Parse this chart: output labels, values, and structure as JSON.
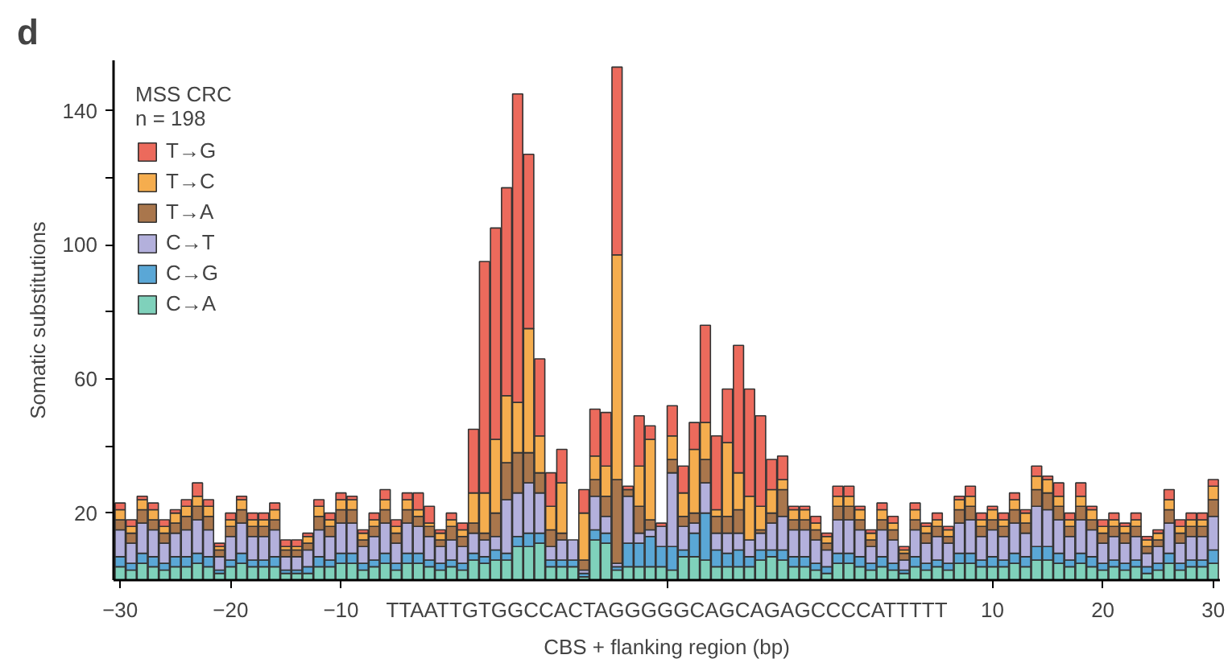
{
  "chart_data": {
    "type": "bar",
    "stacked": true,
    "xlabel": "CBS + flanking region (bp)",
    "ylabel": "Somatic substitutions",
    "legend_title": "MSS CRC\nn = 198",
    "annotations": [
      "d",
      "TTAATTGTGGCCACTAGGGGGCAGCAGAGCCCCATTTTT"
    ],
    "categories": [
      "−30",
      null,
      null,
      null,
      null,
      null,
      null,
      null,
      null,
      null,
      "−20",
      null,
      null,
      null,
      null,
      null,
      null,
      null,
      null,
      null,
      "−10",
      null,
      null,
      null,
      null,
      null,
      null,
      null,
      null,
      null,
      null,
      null,
      null,
      null,
      null,
      null,
      null,
      null,
      null,
      null,
      null,
      null,
      null,
      null,
      null,
      null,
      null,
      null,
      null,
      null,
      null,
      null,
      null,
      null,
      null,
      null,
      null,
      null,
      null,
      null,
      null,
      null,
      null,
      null,
      null,
      null,
      null,
      null,
      null,
      null,
      null,
      null,
      null,
      null,
      null,
      null,
      null,
      null,
      null,
      "10",
      null,
      null,
      null,
      null,
      null,
      null,
      null,
      null,
      null,
      "20",
      null,
      null,
      null,
      null,
      null,
      null,
      null,
      null,
      null,
      "30"
    ],
    "ylim": [
      0,
      155
    ],
    "yticks": [
      20,
      {
        "value": 40,
        "label": null
      },
      60,
      {
        "value": 80,
        "label": null
      },
      100,
      {
        "value": 120,
        "label": null
      },
      140
    ],
    "grid": false,
    "legend": "top left",
    "series": [
      {
        "name": "C→A",
        "color": "#7fd1bb",
        "values": [
          4,
          3,
          5,
          4,
          3,
          4,
          4,
          5,
          4,
          2,
          4,
          5,
          4,
          4,
          4,
          2,
          2,
          2,
          4,
          4,
          5,
          5,
          3,
          4,
          5,
          3,
          5,
          5,
          4,
          3,
          4,
          3,
          6,
          5,
          6,
          6,
          10,
          10,
          11,
          4,
          4,
          4,
          1,
          12,
          11,
          3,
          4,
          4,
          4,
          4,
          3,
          7,
          7,
          6,
          4,
          4,
          4,
          4,
          6,
          7,
          6,
          4,
          4,
          3,
          2,
          5,
          5,
          4,
          3,
          4,
          3,
          2,
          4,
          3,
          4,
          3,
          5,
          5,
          4,
          4,
          4,
          5,
          4,
          6,
          6,
          5,
          4,
          5,
          4,
          3,
          4,
          3,
          4,
          2,
          3,
          5,
          3,
          4,
          4,
          5
        ]
      },
      {
        "name": "C→G",
        "color": "#5aa7d6",
        "values": [
          3,
          2,
          3,
          3,
          2,
          3,
          3,
          3,
          3,
          1,
          2,
          3,
          2,
          2,
          3,
          1,
          1,
          2,
          3,
          2,
          3,
          3,
          2,
          2,
          3,
          2,
          3,
          3,
          2,
          2,
          2,
          2,
          2,
          2,
          3,
          2,
          3,
          4,
          3,
          2,
          2,
          2,
          1,
          3,
          3,
          1,
          7,
          7,
          9,
          6,
          7,
          2,
          7,
          14,
          5,
          4,
          5,
          3,
          3,
          2,
          3,
          3,
          3,
          2,
          2,
          3,
          3,
          3,
          2,
          3,
          2,
          1,
          3,
          2,
          2,
          2,
          3,
          3,
          2,
          3,
          2,
          3,
          3,
          4,
          4,
          3,
          2,
          3,
          3,
          2,
          2,
          2,
          2,
          2,
          2,
          3,
          2,
          2,
          2,
          4
        ]
      },
      {
        "name": "C→T",
        "color": "#b3b0dc",
        "values": [
          8,
          6,
          9,
          8,
          6,
          7,
          8,
          10,
          8,
          4,
          7,
          9,
          7,
          7,
          8,
          4,
          4,
          5,
          8,
          7,
          9,
          9,
          5,
          7,
          9,
          6,
          9,
          8,
          7,
          5,
          6,
          5,
          6,
          5,
          4,
          16,
          13,
          15,
          12,
          4,
          6,
          6,
          1,
          10,
          5,
          1,
          14,
          3,
          2,
          6,
          22,
          7,
          3,
          9,
          5,
          6,
          5,
          5,
          5,
          8,
          10,
          8,
          8,
          7,
          5,
          10,
          10,
          8,
          5,
          8,
          7,
          3,
          8,
          6,
          7,
          6,
          9,
          10,
          7,
          8,
          7,
          9,
          7,
          12,
          11,
          10,
          7,
          10,
          8,
          6,
          7,
          6,
          7,
          4,
          5,
          9,
          6,
          7,
          7,
          10
        ]
      },
      {
        "name": "T→A",
        "color": "#a9764c",
        "values": [
          3,
          3,
          4,
          3,
          3,
          3,
          4,
          4,
          4,
          2,
          3,
          4,
          3,
          3,
          3,
          2,
          2,
          2,
          4,
          3,
          4,
          4,
          2,
          3,
          4,
          3,
          4,
          3,
          3,
          2,
          4,
          3,
          3,
          2,
          7,
          11,
          12,
          9,
          6,
          5,
          2,
          0,
          3,
          5,
          6,
          25,
          2,
          8,
          3,
          0,
          4,
          3,
          3,
          7,
          5,
          5,
          7,
          0,
          1,
          3,
          8,
          3,
          3,
          3,
          2,
          4,
          4,
          3,
          2,
          3,
          3,
          2,
          3,
          3,
          3,
          2,
          4,
          4,
          3,
          3,
          3,
          4,
          3,
          5,
          5,
          4,
          3,
          4,
          3,
          3,
          3,
          3,
          3,
          2,
          2,
          4,
          3,
          3,
          3,
          5
        ]
      },
      {
        "name": "T→C",
        "color": "#f5ad4e",
        "values": [
          3,
          2,
          3,
          3,
          2,
          3,
          3,
          3,
          3,
          1,
          2,
          3,
          2,
          2,
          3,
          1,
          1,
          2,
          3,
          2,
          3,
          3,
          2,
          2,
          3,
          2,
          3,
          2,
          1,
          2,
          2,
          2,
          9,
          12,
          22,
          20,
          15,
          37,
          11,
          7,
          15,
          0,
          14,
          7,
          9,
          67,
          0,
          12,
          24,
          0,
          7,
          7,
          19,
          11,
          2,
          22,
          11,
          13,
          7,
          7,
          3,
          3,
          3,
          2,
          2,
          3,
          3,
          3,
          2,
          3,
          2,
          1,
          3,
          2,
          2,
          2,
          3,
          3,
          2,
          3,
          2,
          3,
          3,
          4,
          4,
          3,
          2,
          3,
          3,
          2,
          2,
          2,
          2,
          2,
          2,
          3,
          2,
          2,
          2,
          4
        ]
      },
      {
        "name": "T→G",
        "color": "#ec6a5c",
        "values": [
          2,
          2,
          1,
          2,
          2,
          1,
          2,
          4,
          2,
          1,
          2,
          1,
          2,
          2,
          2,
          2,
          2,
          1,
          2,
          2,
          2,
          1,
          1,
          2,
          3,
          2,
          2,
          5,
          5,
          1,
          2,
          2,
          19,
          69,
          63,
          62,
          92,
          52,
          23,
          10,
          10,
          0,
          7,
          14,
          16,
          56,
          1,
          15,
          4,
          1,
          9,
          8,
          8,
          29,
          22,
          16,
          38,
          32,
          27,
          9,
          7,
          1,
          1,
          2,
          1,
          3,
          3,
          1,
          1,
          2,
          2,
          1,
          2,
          1,
          2,
          1,
          1,
          3,
          2,
          1,
          2,
          2,
          1,
          3,
          1,
          4,
          2,
          4,
          1,
          2,
          2,
          1,
          2,
          1,
          1,
          3,
          2,
          2,
          2,
          2
        ]
      }
    ]
  }
}
